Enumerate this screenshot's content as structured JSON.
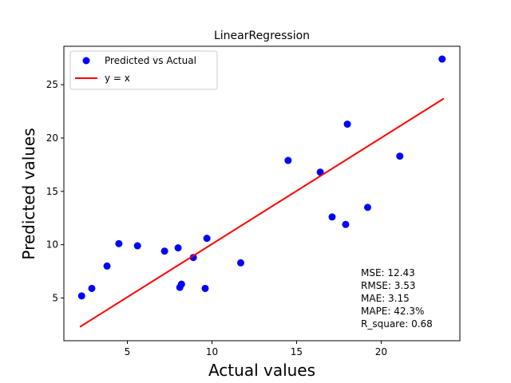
{
  "chart_data": {
    "type": "scatter",
    "title": "LinearRegression",
    "xlabel": "Actual values",
    "ylabel": "Predicted values",
    "xlim": [
      1.25,
      24.65
    ],
    "ylim": [
      1.0,
      28.6
    ],
    "xticks": [
      5,
      10,
      15,
      20
    ],
    "yticks": [
      5,
      10,
      15,
      20,
      25
    ],
    "grid": false,
    "legend_position": "upper-left",
    "series": [
      {
        "name": "Predicted vs Actual",
        "kind": "scatter",
        "color": "#0000ff",
        "points": [
          {
            "x": 2.3,
            "y": 5.2
          },
          {
            "x": 2.9,
            "y": 5.9
          },
          {
            "x": 3.8,
            "y": 8.0
          },
          {
            "x": 4.5,
            "y": 10.1
          },
          {
            "x": 5.6,
            "y": 9.9
          },
          {
            "x": 7.2,
            "y": 9.4
          },
          {
            "x": 8.0,
            "y": 9.7
          },
          {
            "x": 8.1,
            "y": 6.0
          },
          {
            "x": 8.2,
            "y": 6.3
          },
          {
            "x": 8.9,
            "y": 8.8
          },
          {
            "x": 9.6,
            "y": 5.9
          },
          {
            "x": 9.7,
            "y": 10.6
          },
          {
            "x": 11.7,
            "y": 8.3
          },
          {
            "x": 14.5,
            "y": 17.9
          },
          {
            "x": 16.4,
            "y": 16.8
          },
          {
            "x": 17.1,
            "y": 12.6
          },
          {
            "x": 17.9,
            "y": 11.9
          },
          {
            "x": 18.0,
            "y": 21.3
          },
          {
            "x": 19.2,
            "y": 13.5
          },
          {
            "x": 21.1,
            "y": 18.3
          },
          {
            "x": 23.6,
            "y": 27.4
          }
        ]
      },
      {
        "name": "y = x",
        "kind": "line",
        "color": "#ff0000",
        "points": [
          {
            "x": 2.2,
            "y": 2.3
          },
          {
            "x": 23.7,
            "y": 23.7
          }
        ]
      }
    ],
    "annotations": [
      "MSE: 12.43",
      "RMSE: 3.53",
      "MAE: 3.15",
      "MAPE: 42.3%",
      "R_square: 0.68"
    ]
  }
}
